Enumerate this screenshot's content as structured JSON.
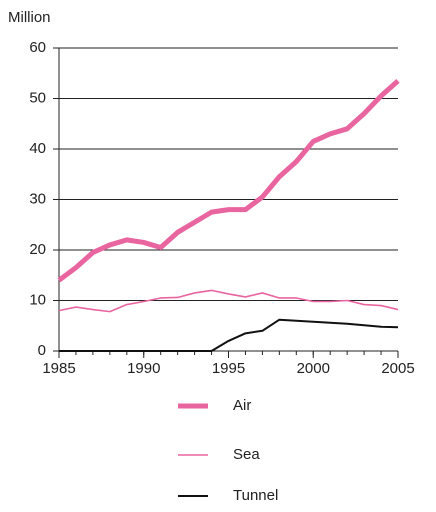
{
  "chart_data": {
    "type": "line",
    "y_label": "Million",
    "x": [
      1985,
      1986,
      1987,
      1988,
      1989,
      1990,
      1991,
      1992,
      1993,
      1994,
      1995,
      1996,
      1997,
      1998,
      1999,
      2000,
      2001,
      2002,
      2003,
      2004,
      2005
    ],
    "series": [
      {
        "name": "Air",
        "color": "#e8659f",
        "width": 5,
        "values": [
          14,
          16.5,
          19.5,
          21,
          22,
          21.5,
          20.5,
          23.5,
          25.5,
          27.5,
          28,
          28,
          30.5,
          34.5,
          37.5,
          41.5,
          43,
          44,
          47,
          50.5,
          53.5
        ]
      },
      {
        "name": "Sea",
        "color": "#e8659f",
        "width": 1.6,
        "values": [
          8,
          8.7,
          8.2,
          7.8,
          9.2,
          9.8,
          10.5,
          10.6,
          11.5,
          12,
          11.3,
          10.7,
          11.5,
          10.5,
          10.5,
          9.8,
          9.8,
          10,
          9.2,
          9,
          8.2
        ]
      },
      {
        "name": "Tunnel",
        "color": "#111111",
        "width": 2,
        "values": [
          0,
          0,
          0,
          0,
          0,
          0,
          0,
          0,
          0,
          0,
          2,
          3.5,
          4,
          6.2,
          6,
          5.8,
          5.6,
          5.4,
          5.1,
          4.8,
          4.7
        ]
      }
    ],
    "xlim": [
      1985,
      2005
    ],
    "xticks": [
      1985,
      1990,
      1995,
      2000,
      2005
    ],
    "ylim": [
      0,
      60
    ],
    "yticks": [
      0,
      10,
      20,
      30,
      40,
      50,
      60
    ],
    "grid": true,
    "legend": "bottom"
  }
}
